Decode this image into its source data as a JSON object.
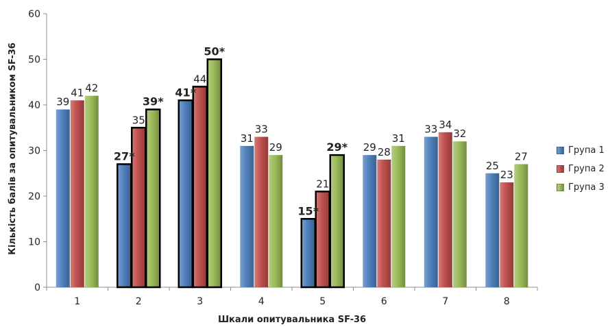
{
  "chart_data": {
    "type": "bar",
    "categories": [
      "1",
      "2",
      "3",
      "4",
      "5",
      "6",
      "7",
      "8"
    ],
    "series": [
      {
        "name": "Група 1",
        "color": "#4f81bd",
        "values": [
          39,
          27,
          41,
          31,
          15,
          29,
          33,
          25
        ],
        "labels": [
          "39",
          "27*",
          "41*",
          "31",
          "15*",
          "29",
          "33",
          "25"
        ],
        "highlighted": [
          false,
          true,
          true,
          false,
          true,
          false,
          false,
          false
        ]
      },
      {
        "name": "Група 2",
        "color": "#c0504d",
        "values": [
          41,
          35,
          44,
          33,
          21,
          28,
          34,
          23
        ],
        "labels": [
          "41",
          "35",
          "44",
          "33",
          "21",
          "28",
          "34",
          "23"
        ],
        "highlighted": [
          false,
          true,
          true,
          false,
          true,
          false,
          false,
          false
        ]
      },
      {
        "name": "Група 3",
        "color": "#9bbb59",
        "values": [
          42,
          39,
          50,
          29,
          29,
          31,
          32,
          27
        ],
        "labels": [
          "42",
          "39*",
          "50*",
          "29",
          "29*",
          "31",
          "32",
          "27"
        ],
        "highlighted": [
          false,
          true,
          true,
          false,
          true,
          false,
          false,
          false
        ]
      }
    ],
    "xlabel": "Шкали опитувальника SF-36",
    "ylabel": "Кількість балів за опитувальником SF-36",
    "ylim": [
      0,
      60
    ],
    "yticks": [
      "0",
      "10",
      "20",
      "30",
      "40",
      "50",
      "60"
    ],
    "grid": false,
    "legend_position": "right"
  }
}
